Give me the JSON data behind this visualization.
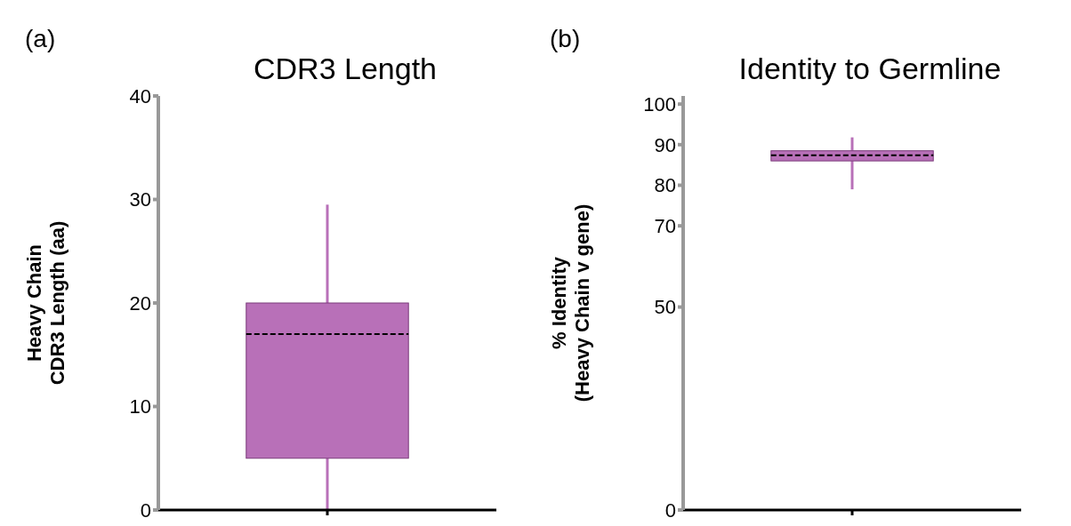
{
  "chart_data": [
    {
      "type": "box",
      "title": "CDR3 Length",
      "ylabel": "Heavy Chain\nCDR3 Length (aa)",
      "annotations": [
        "(a)"
      ],
      "categories": [
        null
      ],
      "color": "#b870b8",
      "boxes": [
        {
          "low": 0,
          "q1": 5,
          "median": 17,
          "q3": 20,
          "high": 29.5
        }
      ],
      "ylim": [
        0,
        40
      ],
      "yticks": [
        0,
        10,
        20,
        30,
        40
      ],
      "grid": false
    },
    {
      "type": "box",
      "title": "Identity to Germline",
      "ylabel": "% Identity\n(Heavy Chain v gene)",
      "annotations": [
        "(b)"
      ],
      "categories": [
        null
      ],
      "color": "#b870b8",
      "boxes": [
        {
          "low": 79,
          "q1": 86,
          "median": 87.4,
          "q3": 88.5,
          "high": 91.8
        }
      ],
      "ylim": [
        0,
        102
      ],
      "yticks": [
        0,
        50,
        70,
        80,
        90,
        100
      ],
      "grid": false
    }
  ]
}
